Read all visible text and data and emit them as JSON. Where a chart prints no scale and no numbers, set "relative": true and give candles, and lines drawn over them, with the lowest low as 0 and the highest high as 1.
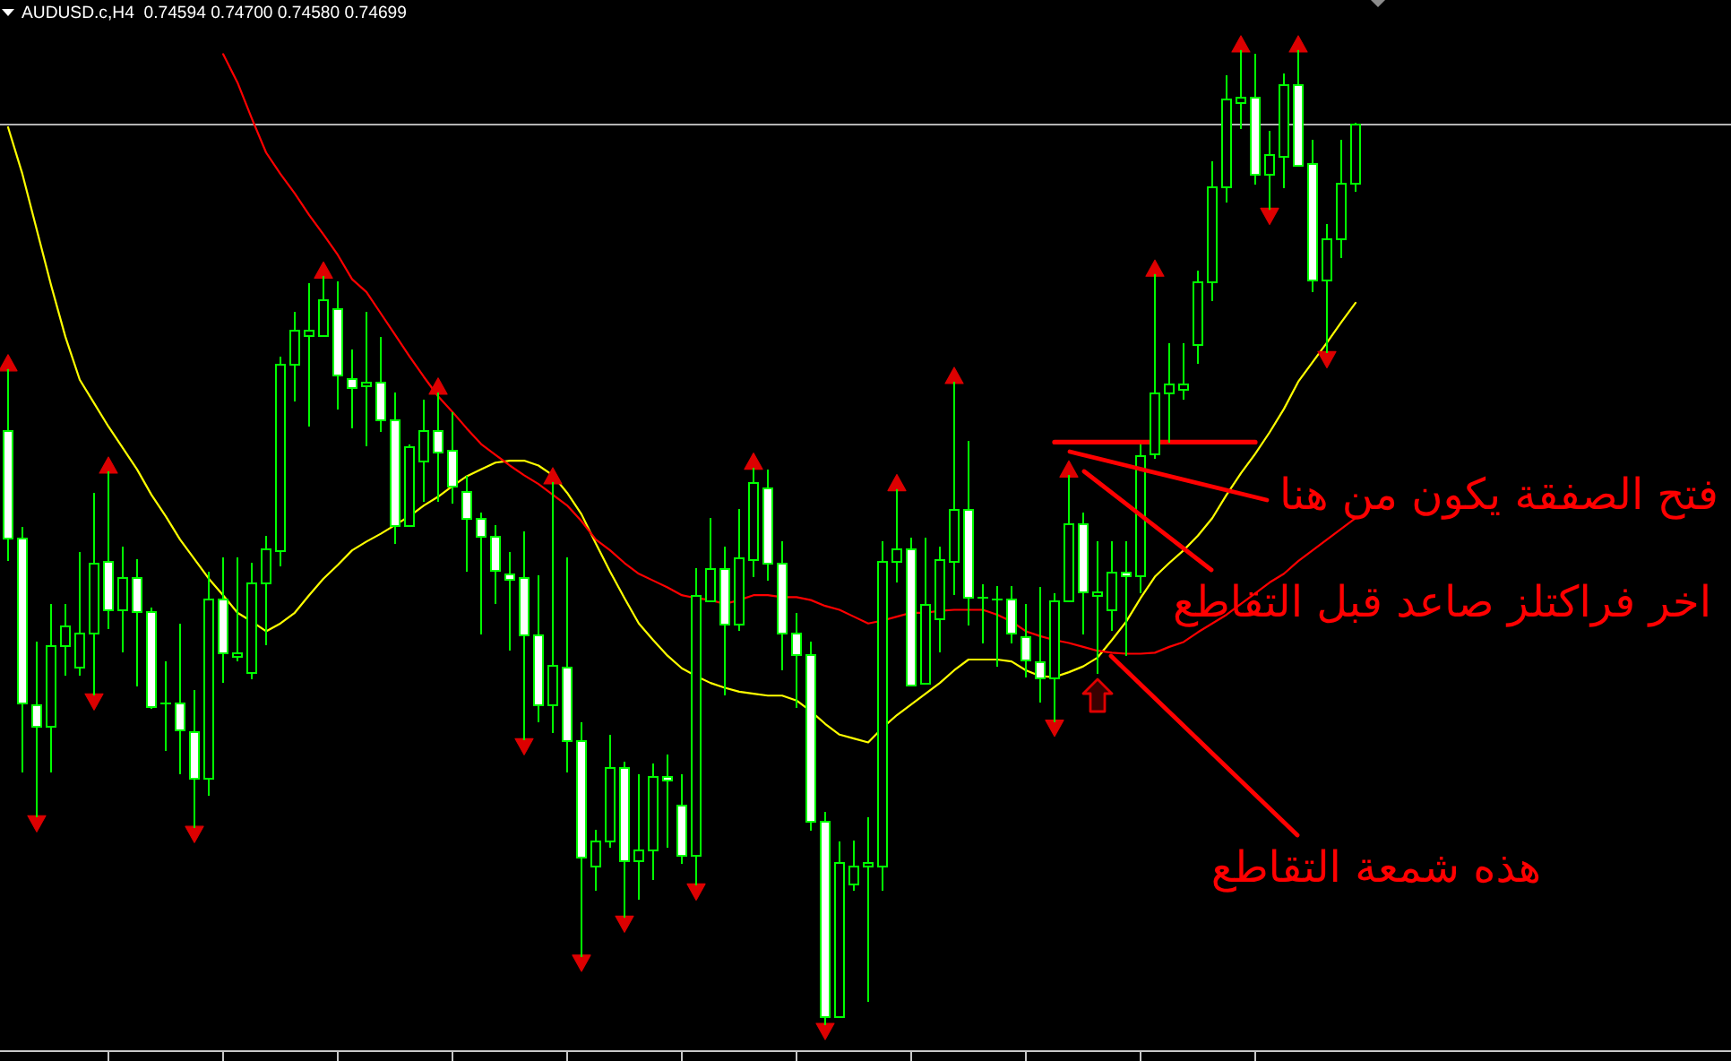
{
  "chart_data": {
    "type": "candlestick",
    "title": "AUDUSD.c,H4  0.74594 0.74700 0.74580 0.74699",
    "relative": true,
    "categories": [
      null,
      null,
      null,
      null,
      null,
      null,
      null,
      null,
      null,
      null,
      null,
      null,
      null,
      null,
      null,
      null,
      null,
      null,
      null,
      null,
      null,
      null,
      null,
      null,
      null,
      null,
      null,
      null,
      null,
      null,
      null,
      null,
      null,
      null,
      null,
      null,
      null,
      null,
      null,
      null,
      null,
      null,
      null,
      null,
      null,
      null,
      null,
      null,
      null,
      null,
      null,
      null,
      null,
      null,
      null,
      null,
      null,
      null,
      null,
      null,
      null,
      null,
      null,
      null,
      null,
      null,
      null,
      null,
      null,
      null,
      null,
      null,
      null,
      null,
      null,
      null,
      null,
      null,
      null,
      null,
      null,
      null,
      null,
      null,
      null,
      null,
      null,
      null,
      null,
      null,
      null,
      null,
      null,
      null,
      null
    ],
    "ohlc": [
      [
        0.61,
        0.673,
        0.476,
        0.5
      ],
      [
        0.5,
        0.511,
        0.259,
        0.331
      ],
      [
        0.329,
        0.393,
        0.213,
        0.307
      ],
      [
        0.307,
        0.432,
        0.259,
        0.39
      ],
      [
        0.39,
        0.432,
        0.358,
        0.41
      ],
      [
        0.368,
        0.485,
        0.358,
        0.403
      ],
      [
        0.403,
        0.546,
        0.338,
        0.474
      ],
      [
        0.476,
        0.568,
        0.406,
        0.426
      ],
      [
        0.426,
        0.491,
        0.382,
        0.46
      ],
      [
        0.46,
        0.478,
        0.347,
        0.425
      ],
      [
        0.425,
        0.428,
        0.324,
        0.327
      ],
      [
        0.331,
        0.373,
        0.281,
        0.331
      ],
      [
        0.331,
        0.412,
        0.257,
        0.303
      ],
      [
        0.301,
        0.344,
        0.202,
        0.254
      ],
      [
        0.254,
        0.465,
        0.235,
        0.438
      ],
      [
        0.438,
        0.48,
        0.351,
        0.382
      ],
      [
        0.379,
        0.48,
        0.373,
        0.382
      ],
      [
        0.362,
        0.474,
        0.355,
        0.454
      ],
      [
        0.454,
        0.502,
        0.39,
        0.489
      ],
      [
        0.487,
        0.686,
        0.471,
        0.678
      ],
      [
        0.678,
        0.732,
        0.64,
        0.713
      ],
      [
        0.708,
        0.761,
        0.614,
        0.713
      ],
      [
        0.708,
        0.768,
        0.706,
        0.744
      ],
      [
        0.735,
        0.763,
        0.631,
        0.667
      ],
      [
        0.664,
        0.693,
        0.612,
        0.654
      ],
      [
        0.656,
        0.732,
        0.594,
        0.66
      ],
      [
        0.66,
        0.706,
        0.608,
        0.621
      ],
      [
        0.621,
        0.649,
        0.494,
        0.513
      ],
      [
        0.513,
        0.596,
        0.511,
        0.594
      ],
      [
        0.579,
        0.642,
        0.537,
        0.61
      ],
      [
        0.61,
        0.649,
        0.537,
        0.588
      ],
      [
        0.59,
        0.629,
        0.535,
        0.553
      ],
      [
        0.548,
        0.563,
        0.465,
        0.52
      ],
      [
        0.52,
        0.526,
        0.401,
        0.502
      ],
      [
        0.502,
        0.513,
        0.432,
        0.467
      ],
      [
        0.463,
        0.485,
        0.384,
        0.458
      ],
      [
        0.46,
        0.506,
        0.292,
        0.401
      ],
      [
        0.401,
        0.461,
        0.311,
        0.329
      ],
      [
        0.329,
        0.557,
        0.3,
        0.369
      ],
      [
        0.368,
        0.48,
        0.259,
        0.292
      ],
      [
        0.292,
        0.311,
        0.07,
        0.173
      ],
      [
        0.164,
        0.2,
        0.138,
        0.189
      ],
      [
        0.189,
        0.298,
        0.182,
        0.265
      ],
      [
        0.265,
        0.27,
        0.11,
        0.169
      ],
      [
        0.169,
        0.257,
        0.129,
        0.18
      ],
      [
        0.18,
        0.268,
        0.149,
        0.256
      ],
      [
        0.256,
        0.278,
        0.182,
        0.252
      ],
      [
        0.226,
        0.257,
        0.165,
        0.175
      ],
      [
        0.175,
        0.469,
        0.143,
        0.441
      ],
      [
        0.436,
        0.52,
        0.434,
        0.469
      ],
      [
        0.469,
        0.491,
        0.338,
        0.412
      ],
      [
        0.412,
        0.529,
        0.404,
        0.48
      ],
      [
        0.478,
        0.572,
        0.46,
        0.557
      ],
      [
        0.551,
        0.57,
        0.456,
        0.474
      ],
      [
        0.474,
        0.496,
        0.364,
        0.403
      ],
      [
        0.403,
        0.423,
        0.325,
        0.381
      ],
      [
        0.381,
        0.393,
        0.199,
        0.21
      ],
      [
        0.21,
        0.219,
        0.0,
        0.009
      ],
      [
        0.009,
        0.188,
        0.009,
        0.167
      ],
      [
        0.145,
        0.189,
        0.138,
        0.164
      ],
      [
        0.164,
        0.213,
        0.024,
        0.167
      ],
      [
        0.164,
        0.496,
        0.138,
        0.476
      ],
      [
        0.476,
        0.55,
        0.454,
        0.489
      ],
      [
        0.489,
        0.5,
        0.347,
        0.349
      ],
      [
        0.351,
        0.5,
        0.349,
        0.432
      ],
      [
        0.417,
        0.491,
        0.382,
        0.478
      ],
      [
        0.476,
        0.66,
        0.441,
        0.529
      ],
      [
        0.529,
        0.599,
        0.41,
        0.439
      ],
      [
        0.438,
        0.452,
        0.392,
        0.439
      ],
      [
        0.438,
        0.45,
        0.368,
        0.438
      ],
      [
        0.438,
        0.45,
        0.392,
        0.403
      ],
      [
        0.399,
        0.432,
        0.357,
        0.375
      ],
      [
        0.373,
        0.449,
        0.331,
        0.357
      ],
      [
        0.357,
        0.443,
        0.311,
        0.436
      ],
      [
        0.436,
        0.564,
        0.434,
        0.515
      ],
      [
        0.515,
        0.526,
        0.401,
        0.445
      ],
      [
        0.441,
        0.496,
        0.36,
        0.445
      ],
      [
        0.426,
        0.496,
        0.404,
        0.465
      ],
      [
        0.465,
        0.496,
        0.379,
        0.461
      ],
      [
        0.461,
        0.596,
        0.443,
        0.585
      ],
      [
        0.586,
        0.77,
        0.581,
        0.649
      ],
      [
        0.649,
        0.699,
        0.597,
        0.658
      ],
      [
        0.653,
        0.699,
        0.642,
        0.658
      ],
      [
        0.699,
        0.774,
        0.678,
        0.763
      ],
      [
        0.763,
        0.886,
        0.743,
        0.86
      ],
      [
        0.86,
        0.974,
        0.844,
        0.95
      ],
      [
        0.947,
        1.0,
        0.919,
        0.952
      ],
      [
        0.952,
        0.996,
        0.862,
        0.873
      ],
      [
        0.873,
        0.917,
        0.836,
        0.893
      ],
      [
        0.892,
        0.976,
        0.858,
        0.965
      ],
      [
        0.965,
        1.0,
        0.881,
        0.882
      ],
      [
        0.884,
        0.908,
        0.752,
        0.765
      ],
      [
        0.765,
        0.822,
        0.689,
        0.807
      ],
      [
        0.807,
        0.908,
        0.787,
        0.864
      ],
      [
        0.864,
        0.926,
        0.855,
        0.925
      ]
    ],
    "color": "#00ff00",
    "colors": [
      "#ffffff",
      "#ffffff",
      "#ffffff",
      "#000000",
      "#000000",
      "#000000",
      "#000000",
      "#ffffff",
      "#000000",
      "#ffffff",
      "#ffffff",
      "#00ff00",
      "#ffffff",
      "#ffffff",
      "#000000",
      "#ffffff",
      "#000000",
      "#000000",
      "#000000",
      "#000000",
      "#000000",
      "#000000",
      "#000000",
      "#ffffff",
      "#ffffff",
      "#000000",
      "#ffffff",
      "#ffffff",
      "#000000",
      "#000000",
      "#ffffff",
      "#ffffff",
      "#ffffff",
      "#ffffff",
      "#ffffff",
      "#ffffff",
      "#ffffff",
      "#ffffff",
      "#000000",
      "#ffffff",
      "#ffffff",
      "#000000",
      "#000000",
      "#ffffff",
      "#000000",
      "#000000",
      "#ffffff",
      "#ffffff",
      "#000000",
      "#000000",
      "#ffffff",
      "#000000",
      "#000000",
      "#ffffff",
      "#ffffff",
      "#ffffff",
      "#ffffff",
      "#ffffff",
      "#000000",
      "#000000",
      "#000000",
      "#000000",
      "#000000",
      "#ffffff",
      "#000000",
      "#000000",
      "#000000",
      "#ffffff",
      "#00ff00",
      "#00ff00",
      "#ffffff",
      "#ffffff",
      "#ffffff",
      "#000000",
      "#000000",
      "#ffffff",
      "#000000",
      "#000000",
      "#ffffff",
      "#000000",
      "#000000",
      "#000000",
      "#000000",
      "#000000",
      "#000000",
      "#000000",
      "#000000",
      "#ffffff",
      "#000000",
      "#000000",
      "#ffffff",
      "#ffffff",
      "#000000",
      "#000000",
      "#000000"
    ],
    "series": [
      {
        "type": "line",
        "color": "#ffff00",
        "values": [
          0.921,
          0.873,
          0.816,
          0.759,
          0.706,
          0.662,
          0.638,
          0.614,
          0.592,
          0.57,
          0.544,
          0.522,
          0.498,
          0.478,
          0.458,
          0.441,
          0.423,
          0.414,
          0.404,
          0.412,
          0.423,
          0.441,
          0.458,
          0.472,
          0.487,
          0.496,
          0.504,
          0.513,
          0.522,
          0.533,
          0.542,
          0.553,
          0.563,
          0.57,
          0.577,
          0.579,
          0.579,
          0.574,
          0.564,
          0.546,
          0.524,
          0.494,
          0.465,
          0.438,
          0.412,
          0.395,
          0.379,
          0.366,
          0.358,
          0.351,
          0.346,
          0.342,
          0.34,
          0.338,
          0.338,
          0.333,
          0.322,
          0.309,
          0.298,
          0.294,
          0.29,
          0.305,
          0.318,
          0.329,
          0.34,
          0.351,
          0.364,
          0.375,
          0.375,
          0.375,
          0.373,
          0.364,
          0.358,
          0.357,
          0.362,
          0.368,
          0.377,
          0.395,
          0.414,
          0.438,
          0.46,
          0.474,
          0.487,
          0.502,
          0.52,
          0.544,
          0.566,
          0.586,
          0.608,
          0.632,
          0.66,
          0.68,
          0.7,
          0.721,
          0.741
        ]
      },
      {
        "type": "line",
        "color": "#ff0000",
        "values": [
          null,
          null,
          null,
          null,
          null,
          null,
          null,
          null,
          null,
          null,
          null,
          null,
          null,
          null,
          null,
          0.996,
          0.967,
          0.93,
          0.895,
          0.873,
          0.853,
          0.831,
          0.811,
          0.79,
          0.765,
          0.752,
          0.73,
          0.708,
          0.686,
          0.665,
          0.645,
          0.629,
          0.612,
          0.596,
          0.585,
          0.574,
          0.564,
          0.555,
          0.544,
          0.533,
          0.517,
          0.498,
          0.487,
          0.474,
          0.463,
          0.456,
          0.449,
          0.441,
          0.438,
          0.436,
          0.432,
          0.436,
          0.441,
          0.441,
          0.439,
          0.439,
          0.436,
          0.43,
          0.426,
          0.419,
          0.412,
          0.415,
          0.419,
          0.423,
          0.423,
          0.425,
          0.426,
          0.426,
          0.426,
          0.421,
          0.414,
          0.404,
          0.399,
          0.395,
          0.392,
          0.388,
          0.384,
          0.382,
          0.381,
          0.381,
          0.382,
          0.388,
          0.393,
          0.403,
          0.412,
          0.421,
          0.432,
          0.443,
          0.454,
          0.463,
          0.476,
          0.487,
          0.498,
          0.509,
          0.52
        ]
      },
      {
        "type": "scatter",
        "color": "#dd0000",
        "marker": "triangle",
        "values": [
          0.673,
          null,
          null,
          null,
          null,
          null,
          null,
          0.568,
          null,
          null,
          null,
          null,
          null,
          null,
          null,
          null,
          null,
          null,
          null,
          null,
          null,
          null,
          0.768,
          null,
          null,
          null,
          null,
          null,
          null,
          null,
          0.649,
          null,
          null,
          null,
          null,
          null,
          null,
          null,
          0.557,
          null,
          null,
          null,
          null,
          null,
          null,
          null,
          null,
          null,
          null,
          null,
          null,
          null,
          0.572,
          null,
          null,
          null,
          null,
          null,
          null,
          null,
          null,
          null,
          0.55,
          null,
          null,
          null,
          0.66,
          null,
          null,
          null,
          null,
          null,
          null,
          null,
          0.564,
          null,
          null,
          null,
          null,
          null,
          0.77,
          null,
          null,
          null,
          null,
          null,
          1.0,
          null,
          null,
          null,
          1.0,
          null,
          null,
          null,
          null
        ]
      },
      {
        "type": "scatter",
        "color": "#dd0000",
        "marker": "triangle",
        "values": [
          null,
          null,
          0.213,
          null,
          null,
          null,
          0.338,
          null,
          null,
          null,
          null,
          null,
          null,
          0.202,
          null,
          null,
          null,
          null,
          null,
          null,
          null,
          null,
          null,
          null,
          null,
          null,
          null,
          null,
          null,
          null,
          null,
          null,
          null,
          null,
          null,
          null,
          0.292,
          null,
          null,
          null,
          0.07,
          null,
          null,
          0.11,
          null,
          null,
          null,
          null,
          0.143,
          null,
          null,
          null,
          null,
          null,
          null,
          null,
          null,
          0.0,
          null,
          null,
          null,
          null,
          null,
          null,
          null,
          null,
          null,
          null,
          null,
          null,
          null,
          null,
          null,
          0.311,
          null,
          null,
          null,
          null,
          null,
          null,
          null,
          null,
          null,
          null,
          null,
          null,
          null,
          null,
          0.836,
          null,
          null,
          null,
          0.689,
          null,
          null
        ]
      },
      {
        "type": "line",
        "color": "#ff0000",
        "values": [
          null,
          null,
          null,
          null,
          null,
          null,
          null,
          null,
          null,
          null,
          null,
          null,
          null,
          null,
          null,
          null,
          null,
          null,
          null,
          null,
          null,
          null,
          null,
          null,
          null,
          null,
          null,
          null,
          null,
          null,
          null,
          null,
          null,
          null,
          null,
          null,
          null,
          null,
          null,
          null,
          null,
          null,
          null,
          null,
          null,
          null,
          null,
          null,
          null,
          null,
          null,
          null,
          null,
          null,
          null,
          null,
          null,
          null,
          null,
          null,
          null,
          null,
          null,
          null,
          null,
          null,
          null,
          null,
          null,
          null,
          null,
          null,
          null,
          0.598,
          0.598,
          0.598,
          0.598,
          0.598,
          0.598,
          0.598,
          0.598,
          0.598,
          0.598,
          0.598,
          0.598,
          0.598,
          0.598,
          0.598,
          null,
          null,
          null,
          null,
          null,
          null,
          null
        ]
      }
    ],
    "ref_lines": [
      {
        "axis": "y",
        "value": 0.925,
        "color": "#b4b4b4"
      }
    ],
    "annotations": [
      "فتح الصفقة يكون من هنا",
      "اخر فراكتلز صاعد قبل التقاطع",
      "هذه شمعة التقاطع"
    ]
  }
}
